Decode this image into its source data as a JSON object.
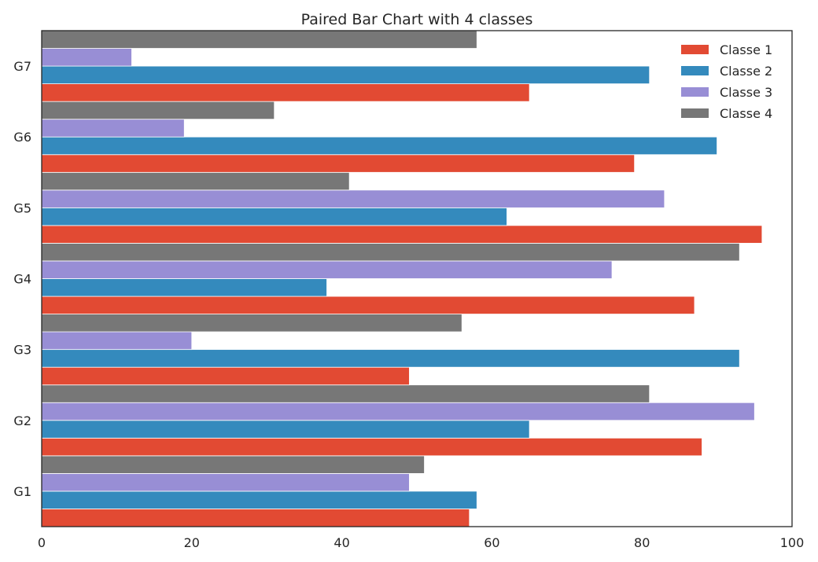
{
  "chart_data": {
    "type": "bar",
    "orientation": "horizontal",
    "title": "Paired Bar Chart with 4 classes",
    "xlabel": "",
    "ylabel": "",
    "xlim": [
      0,
      100
    ],
    "xticks": [
      0,
      20,
      40,
      60,
      80,
      100
    ],
    "grid": false,
    "legend_position": "top-right",
    "categories": [
      "G1",
      "G2",
      "G3",
      "G4",
      "G5",
      "G6",
      "G7"
    ],
    "series": [
      {
        "name": "Classe 1",
        "color": "#E24A33",
        "values": [
          57,
          88,
          49,
          87,
          96,
          79,
          65
        ]
      },
      {
        "name": "Classe 2",
        "color": "#348ABD",
        "values": [
          58,
          65,
          93,
          38,
          62,
          90,
          81
        ]
      },
      {
        "name": "Classe 3",
        "color": "#988ED5",
        "values": [
          49,
          95,
          20,
          76,
          83,
          19,
          12
        ]
      },
      {
        "name": "Classe 4",
        "color": "#777777",
        "values": [
          51,
          81,
          56,
          93,
          41,
          31,
          58
        ]
      }
    ]
  }
}
